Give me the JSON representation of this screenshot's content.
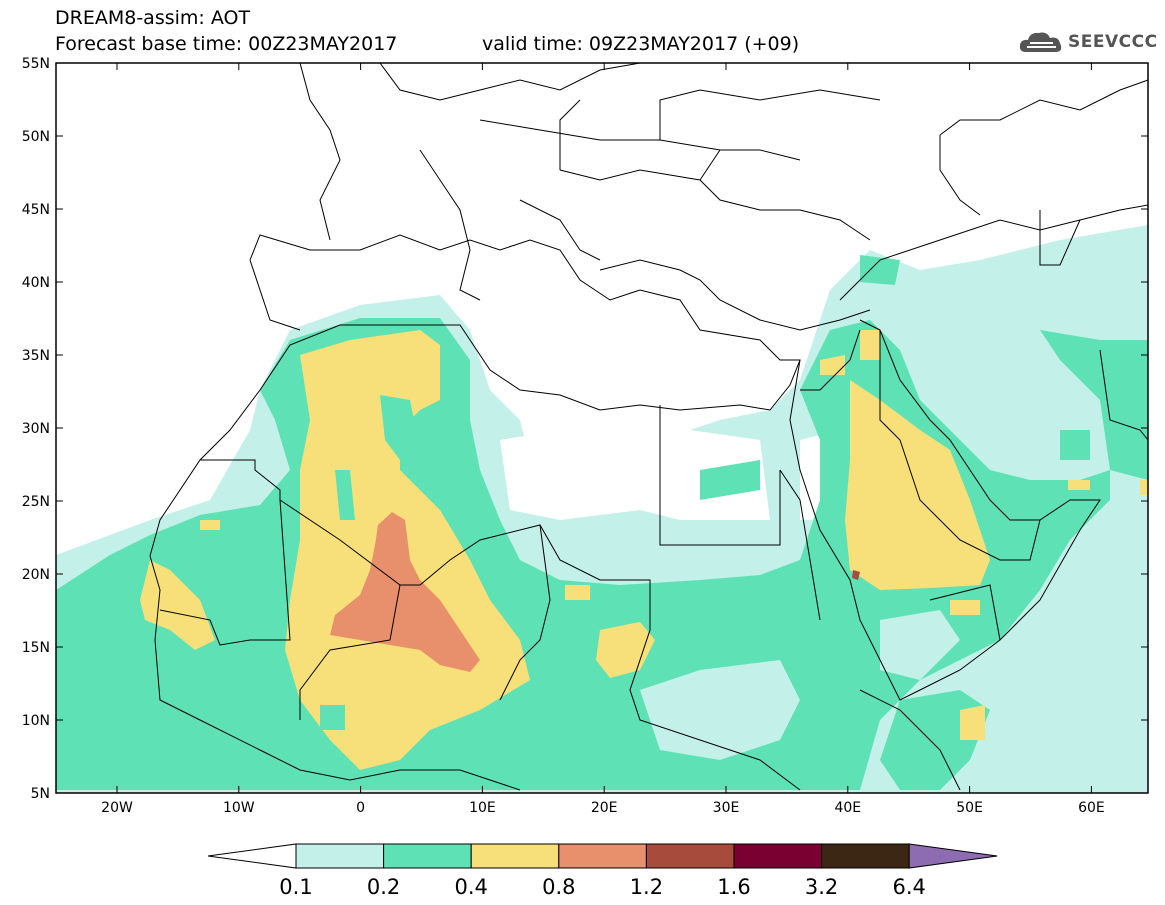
{
  "header": {
    "title": "DREAM8-assim: AOT",
    "base_time": "Forecast base time: 00Z23MAY2017",
    "valid_time": "valid time: 09Z23MAY2017 (+09)"
  },
  "logo": {
    "text": "SEEVCCC",
    "icon": "cloud-icon"
  },
  "map": {
    "lat_labels": [
      "55N",
      "50N",
      "45N",
      "40N",
      "35N",
      "30N",
      "25N",
      "20N",
      "15N",
      "10N",
      "5N"
    ],
    "lon_labels": [
      "20W",
      "10W",
      "0",
      "10E",
      "20E",
      "30E",
      "40E",
      "50E",
      "60E"
    ]
  },
  "colorbar": {
    "labels": [
      "0.1",
      "0.2",
      "0.4",
      "0.8",
      "1.2",
      "1.6",
      "3.2",
      "6.4"
    ],
    "colors": [
      "#ffffff",
      "#c4f0ea",
      "#5ee2b5",
      "#f7e07a",
      "#e7906b",
      "#a74b3d",
      "#7a0031",
      "#3c2614",
      "#8e6cb2"
    ]
  },
  "field_colors": {
    "level1": "#c4f0ea",
    "level2": "#5ee2b5",
    "level3": "#f7e07a",
    "level4": "#e7906b",
    "level5": "#a74b3d"
  }
}
